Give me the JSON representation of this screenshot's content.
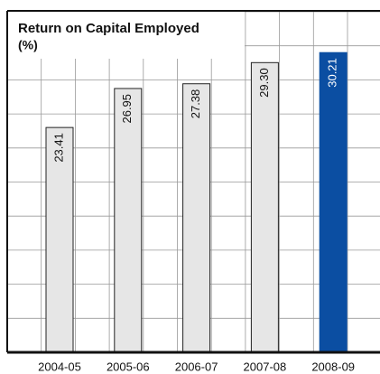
{
  "chart_data": {
    "type": "bar",
    "title": "Return on Capital Employed",
    "subtitle": "(%)",
    "categories": [
      "2004-05",
      "2005-06",
      "2006-07",
      "2007-08",
      "2008-09"
    ],
    "values": [
      23.41,
      26.95,
      27.38,
      29.3,
      30.21
    ],
    "value_labels": [
      "23.41",
      "26.95",
      "27.38",
      "29.30",
      "30.21"
    ],
    "colors": [
      "#e6e6e6",
      "#e6e6e6",
      "#e6e6e6",
      "#e6e6e6",
      "#0b4ea2"
    ],
    "ylim": [
      3,
      34
    ],
    "grid": true
  }
}
